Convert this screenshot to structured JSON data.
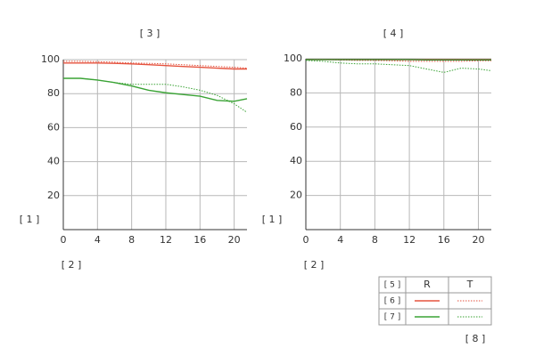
{
  "chart_data": [
    {
      "type": "line",
      "title": "[ 3 ]",
      "xlabel": "[ 2 ]",
      "ylabel": "[ 1 ]",
      "x": [
        0,
        2,
        4,
        6,
        8,
        10,
        12,
        14,
        16,
        18,
        20,
        21.5
      ],
      "xlim": [
        0,
        21.5
      ],
      "xticks": [
        0,
        4,
        8,
        12,
        16,
        20
      ],
      "ylim": [
        0,
        100
      ],
      "yticks": [
        20,
        40,
        60,
        80,
        100
      ],
      "grid": true,
      "series": [
        {
          "color": "#e5533f",
          "dash": false,
          "values": [
            98,
            98,
            98,
            97.8,
            97.5,
            97,
            96.5,
            96,
            95.5,
            95,
            94.5,
            94.5
          ]
        },
        {
          "color": "#e5533f",
          "dash": true,
          "values": [
            99,
            99,
            98.8,
            98.5,
            98,
            97.8,
            97.5,
            97,
            96.5,
            96,
            95.5,
            95
          ]
        },
        {
          "color": "#3aa335",
          "dash": false,
          "values": [
            89,
            89,
            88,
            86.5,
            84.5,
            82,
            80.5,
            79.5,
            78.5,
            76,
            75.5,
            77
          ]
        },
        {
          "color": "#3aa335",
          "dash": true,
          "values": [
            89,
            89,
            88,
            86.5,
            85.5,
            85.5,
            85.5,
            84,
            82,
            79,
            74,
            69
          ]
        }
      ]
    },
    {
      "type": "line",
      "title": "[ 4 ]",
      "xlabel": "[ 2 ]",
      "ylabel": "[ 1 ]",
      "x": [
        0,
        2,
        4,
        6,
        8,
        10,
        12,
        14,
        16,
        18,
        20,
        21.5
      ],
      "xlim": [
        0,
        21.5
      ],
      "xticks": [
        0,
        4,
        8,
        12,
        16,
        20
      ],
      "ylim": [
        0,
        100
      ],
      "yticks": [
        20,
        40,
        60,
        80,
        100
      ],
      "grid": true,
      "series": [
        {
          "color": "#e5533f",
          "dash": false,
          "values": [
            99.5,
            99.5,
            99.5,
            99.5,
            99.5,
            99.5,
            99.5,
            99.5,
            99.5,
            99.5,
            99.5,
            99.5
          ]
        },
        {
          "color": "#e5533f",
          "dash": true,
          "values": [
            99.5,
            99.5,
            99.3,
            99,
            99,
            98.8,
            98.5,
            98.5,
            98.5,
            98.5,
            98.8,
            98.8
          ]
        },
        {
          "color": "#2f7d28",
          "dash": false,
          "values": [
            99.5,
            99.5,
            99.5,
            99.5,
            99.5,
            99.5,
            99.5,
            99.3,
            99.3,
            99.3,
            99.3,
            99.3
          ]
        },
        {
          "color": "#3aa335",
          "dash": true,
          "values": [
            99,
            98.5,
            97.5,
            97,
            97,
            96.5,
            96,
            94,
            92,
            94.5,
            94,
            93
          ]
        }
      ]
    }
  ],
  "legend": {
    "header": "[ 5 ]",
    "columns": [
      "R",
      "T"
    ],
    "rows": [
      "[ 6 ]",
      "[ 7 ]"
    ]
  },
  "note": "[ 8 ]"
}
